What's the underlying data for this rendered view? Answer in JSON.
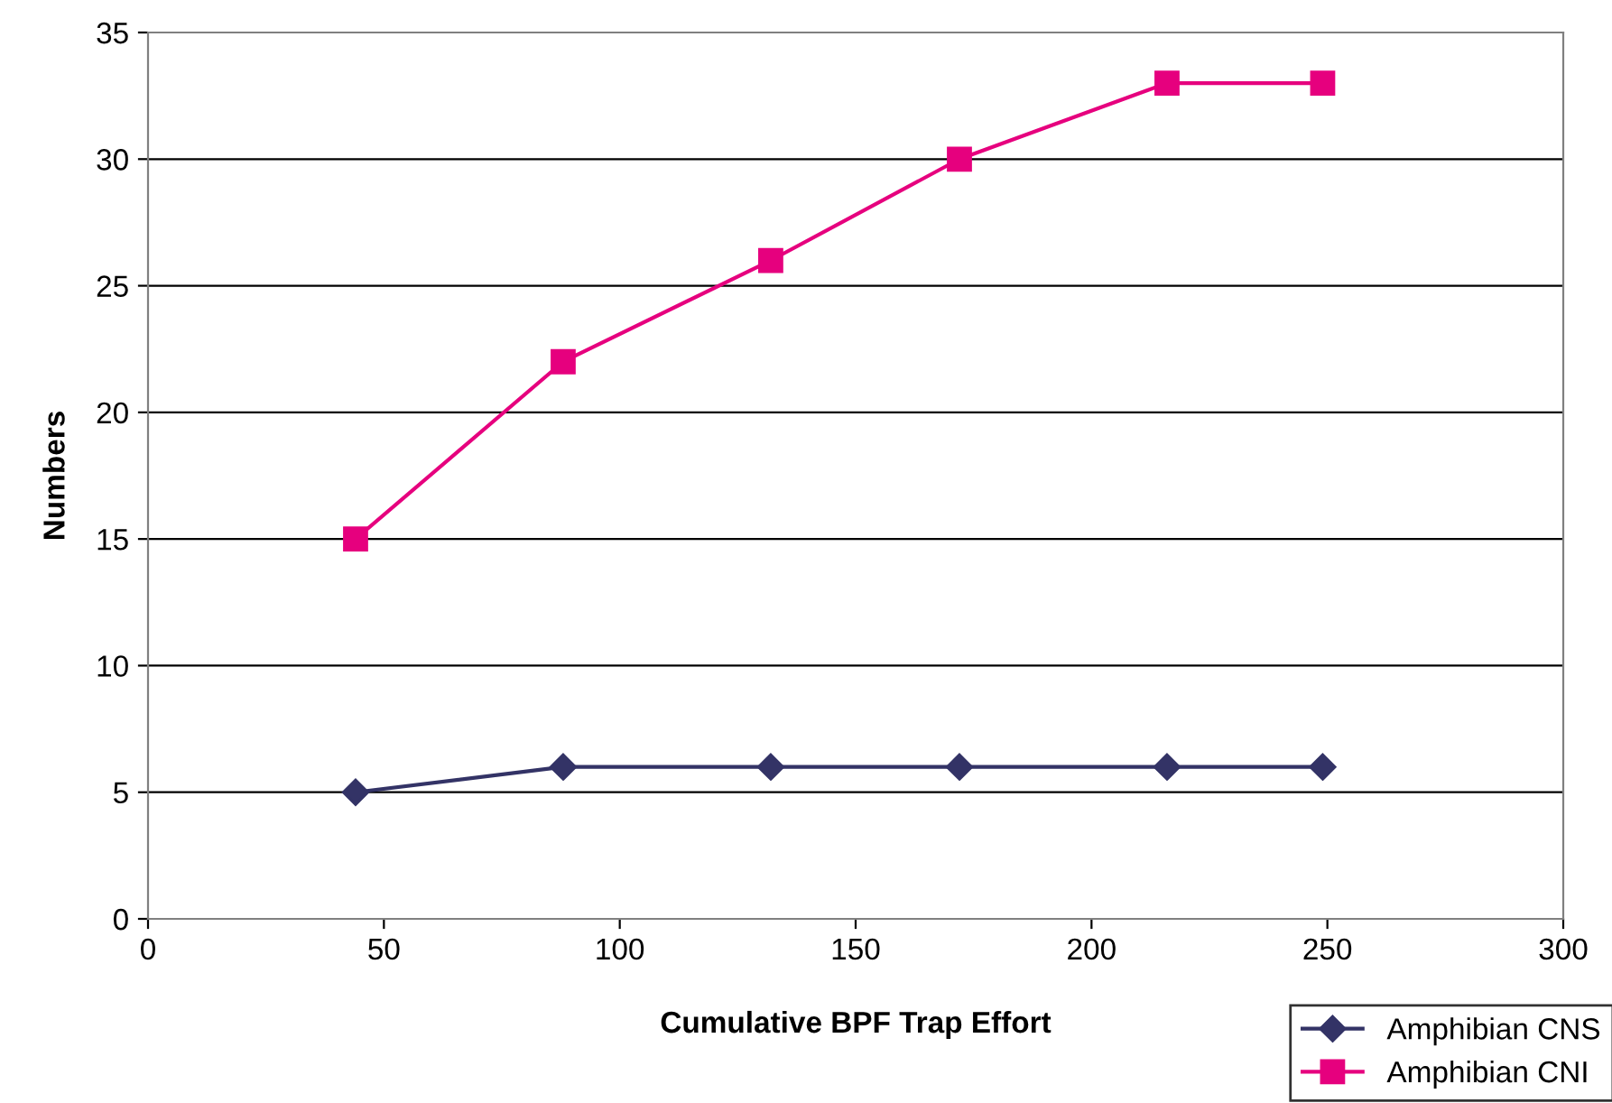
{
  "chart_data": {
    "type": "line",
    "xlabel": "Cumulative BPF Trap Effort",
    "ylabel": "Numbers",
    "xlim": [
      0,
      300
    ],
    "xticks": [
      0,
      50,
      100,
      150,
      200,
      250,
      300
    ],
    "ylim": [
      0,
      35
    ],
    "yticks": [
      0,
      5,
      10,
      15,
      20,
      25,
      30,
      35
    ],
    "grid": "y",
    "legend": "bottom right",
    "line_style": "solid",
    "series": [
      {
        "name": "Amphibian CNS",
        "color": "#333366",
        "marker": "diamond",
        "x": [
          44,
          88,
          132,
          172,
          216,
          249
        ],
        "values": [
          5,
          6,
          6,
          6,
          6,
          6
        ]
      },
      {
        "name": "Amphibian CNI",
        "color": "#e6007e",
        "marker": "square",
        "x": [
          44,
          88,
          132,
          172,
          216,
          249
        ],
        "values": [
          15,
          22,
          26,
          30,
          33,
          33
        ]
      }
    ]
  }
}
